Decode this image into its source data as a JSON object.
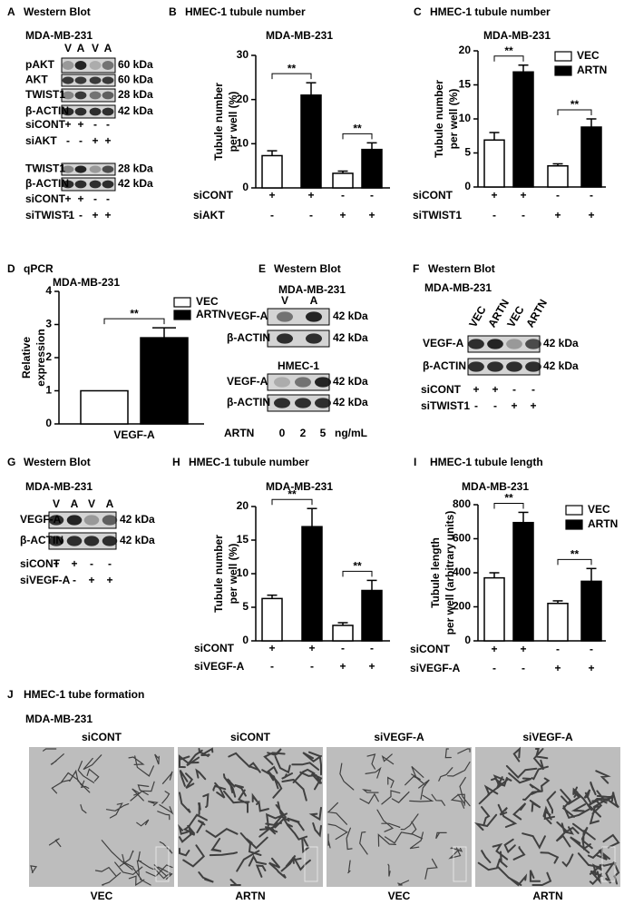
{
  "chart_data": [
    {
      "type": "bar",
      "letter": "B",
      "title": "HMEC-1 tubule number",
      "subtitle": "MDA-MB-231",
      "ylabel": [
        "Tubule number",
        "per well (%)"
      ],
      "values": [
        7.3,
        21,
        3.3,
        8.7
      ],
      "errors": [
        1.1,
        2.8,
        0.5,
        1.5
      ],
      "bar_colors": [
        "#ffffff",
        "#000000",
        "#ffffff",
        "#000000"
      ],
      "ylim": [
        0,
        30
      ],
      "yticks": [
        0,
        10,
        20,
        30
      ],
      "significance": [
        "**",
        "**"
      ],
      "conditions": [
        {
          "label": "siCONT",
          "marks": [
            "+",
            "+",
            "-",
            "-"
          ]
        },
        {
          "label": "siAKT",
          "marks": [
            "-",
            "-",
            "+",
            "+"
          ]
        }
      ]
    },
    {
      "type": "bar",
      "letter": "C",
      "title": "HMEC-1 tubule number",
      "subtitle": "MDA-MB-231",
      "ylabel": [
        "Tubule number",
        "per well (%)"
      ],
      "values": [
        6.9,
        16.9,
        3.1,
        8.8
      ],
      "errors": [
        1.1,
        1.0,
        0.3,
        1.2
      ],
      "bar_colors": [
        "#ffffff",
        "#000000",
        "#ffffff",
        "#000000"
      ],
      "ylim": [
        0,
        20
      ],
      "yticks": [
        0,
        5,
        10,
        15,
        20
      ],
      "significance": [
        "**",
        "**"
      ],
      "legend": [
        {
          "name": "VEC",
          "color": "#ffffff"
        },
        {
          "name": "ARTN",
          "color": "#000000"
        }
      ],
      "conditions": [
        {
          "label": "siCONT",
          "marks": [
            "+",
            "+",
            "-",
            "-"
          ]
        },
        {
          "label": "siTWIST1",
          "marks": [
            "-",
            "-",
            "+",
            "+"
          ]
        }
      ]
    },
    {
      "type": "bar",
      "letter": "D",
      "title": "qPCR",
      "subtitle": "MDA-MB-231",
      "ylabel": [
        "Relative",
        "expression"
      ],
      "xlabel": "VEGF-A",
      "values": [
        1,
        2.6
      ],
      "errors": [
        null,
        0.3
      ],
      "bar_colors": [
        "#ffffff",
        "#000000"
      ],
      "ylim": [
        0,
        4
      ],
      "yticks": [
        0,
        1,
        2,
        3,
        4
      ],
      "significance": [
        "**"
      ],
      "legend": [
        {
          "name": "VEC",
          "color": "#ffffff"
        },
        {
          "name": "ARTN",
          "color": "#000000"
        }
      ]
    },
    {
      "type": "bar",
      "letter": "H",
      "title": "HMEC-1 tubule number",
      "subtitle": "MDA-MB-231",
      "ylabel": [
        "Tubule number",
        "per well (%)"
      ],
      "values": [
        6.3,
        17,
        2.3,
        7.5
      ],
      "errors": [
        0.5,
        2.7,
        0.4,
        1.5
      ],
      "bar_colors": [
        "#ffffff",
        "#000000",
        "#ffffff",
        "#000000"
      ],
      "ylim": [
        0,
        20
      ],
      "yticks": [
        0,
        5,
        10,
        15,
        20
      ],
      "significance": [
        "**",
        "**"
      ],
      "conditions": [
        {
          "label": "siCONT",
          "marks": [
            "+",
            "+",
            "-",
            "-"
          ]
        },
        {
          "label": "siVEGF-A",
          "marks": [
            "-",
            "-",
            "+",
            "+"
          ]
        }
      ]
    },
    {
      "type": "bar",
      "letter": "I",
      "title": "HMEC-1 tubule length",
      "subtitle": "MDA-MB-231",
      "ylabel": [
        "Tubule length",
        "per well (arbitrary units)"
      ],
      "values": [
        370,
        695,
        220,
        350
      ],
      "errors": [
        30,
        60,
        15,
        75
      ],
      "bar_colors": [
        "#ffffff",
        "#000000",
        "#ffffff",
        "#000000"
      ],
      "ylim": [
        0,
        800
      ],
      "yticks": [
        0,
        200,
        400,
        600,
        800
      ],
      "significance": [
        "**",
        "**"
      ],
      "legend": [
        {
          "name": "VEC",
          "color": "#ffffff"
        },
        {
          "name": "ARTN",
          "color": "#000000"
        }
      ],
      "conditions": [
        {
          "label": "siCONT",
          "marks": [
            "+",
            "+",
            "-",
            "-"
          ]
        },
        {
          "label": "siVEGF-A",
          "marks": [
            "-",
            "-",
            "+",
            "+"
          ]
        }
      ]
    }
  ],
  "blots": [
    {
      "letter": "A",
      "title": "Western Blot",
      "subtitle": "MDA-MB-231",
      "groups": [
        {
          "lanes": [
            "V",
            "A",
            "V",
            "A"
          ],
          "bands": [
            {
              "name": "pAKT",
              "size": "60 kDa"
            },
            {
              "name": "AKT",
              "size": "60 kDa"
            },
            {
              "name": "TWIST1",
              "size": "28 kDa"
            },
            {
              "name": "β-ACTIN",
              "size": "42 kDa"
            }
          ],
          "conditions": [
            {
              "label": "siCONT",
              "marks": [
                "+",
                "+",
                "-",
                "-"
              ]
            },
            {
              "label": "siAKT",
              "marks": [
                "-",
                "-",
                "+",
                "+"
              ]
            }
          ]
        },
        {
          "bands": [
            {
              "name": "TWIST1",
              "size": "28 kDa"
            },
            {
              "name": "β-ACTIN",
              "size": "42 kDa"
            }
          ],
          "conditions": [
            {
              "label": "siCONT",
              "marks": [
                "+",
                "+",
                "-",
                "-"
              ]
            },
            {
              "label": "siTWIST1",
              "marks": [
                "-",
                "-",
                "+",
                "+"
              ]
            }
          ]
        }
      ]
    },
    {
      "letter": "E",
      "title": "Western Blot",
      "subtitle": "MDA-MB-231",
      "groups": [
        {
          "lanes": [
            "V",
            "A"
          ],
          "bands": [
            {
              "name": "VEGF-A",
              "size": "42 kDa"
            },
            {
              "name": "β-ACTIN",
              "size": "42 kDa"
            }
          ]
        },
        {
          "header": "HMEC-1",
          "bands": [
            {
              "name": "VEGF-A",
              "size": "42 kDa"
            },
            {
              "name": "β-ACTIN",
              "size": "42 kDa"
            }
          ],
          "conditions": [
            {
              "label": "ARTN",
              "marks": [
                "0",
                "2",
                "5"
              ],
              "unit": "ng/mL"
            }
          ]
        }
      ]
    },
    {
      "letter": "F",
      "title": "Western Blot",
      "subtitle": "MDA-MB-231",
      "groups": [
        {
          "lanes": [
            "VEC",
            "ARTN",
            "VEC",
            "ARTN"
          ],
          "bands": [
            {
              "name": "VEGF-A",
              "size": "42 kDa"
            },
            {
              "name": "β-ACTIN",
              "size": "42 kDa"
            }
          ],
          "conditions": [
            {
              "label": "siCONT",
              "marks": [
                "+",
                "+",
                "-",
                "-"
              ]
            },
            {
              "label": "siTWIST1",
              "marks": [
                "-",
                "-",
                "+",
                "+"
              ]
            }
          ]
        }
      ]
    },
    {
      "letter": "G",
      "title": "Western Blot",
      "subtitle": "MDA-MB-231",
      "groups": [
        {
          "lanes": [
            "V",
            "A",
            "V",
            "A"
          ],
          "bands": [
            {
              "name": "VEGF-A",
              "size": "42 kDa"
            },
            {
              "name": "β-ACTIN",
              "size": "42 kDa"
            }
          ],
          "conditions": [
            {
              "label": "siCONT",
              "marks": [
                "+",
                "+",
                "-",
                "-"
              ]
            },
            {
              "label": "siVEGF-A",
              "marks": [
                "-",
                "-",
                "+",
                "+"
              ]
            }
          ]
        }
      ]
    }
  ],
  "images": {
    "letter": "J",
    "title": "HMEC-1 tube formation",
    "subtitle": "MDA-MB-231",
    "top_labels": [
      "siCONT",
      "siCONT",
      "siVEGF-A",
      "siVEGF-A"
    ],
    "bottom_labels": [
      "VEC",
      "ARTN",
      "VEC",
      "ARTN"
    ]
  }
}
